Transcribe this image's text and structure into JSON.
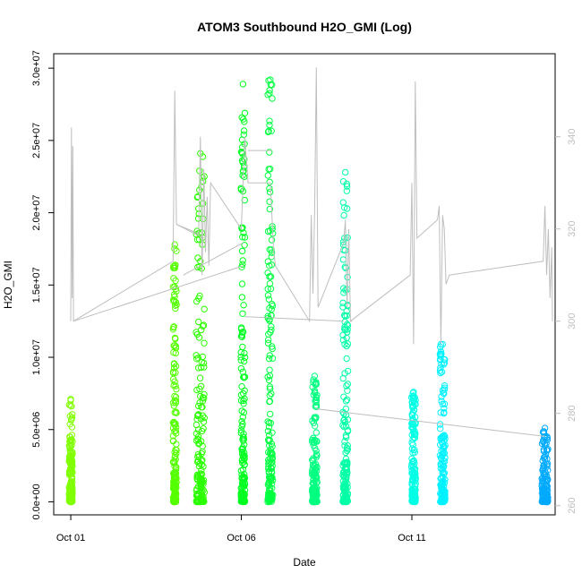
{
  "chart_data": {
    "type": "scatter",
    "title": "ATOM3 Southbound H2O_GMI (Log)",
    "xlabel": "Date",
    "ylabel": "H2O_GMI",
    "x_ticks": [
      {
        "label": "Oct 01",
        "day": 1
      },
      {
        "label": "Oct 06",
        "day": 6
      },
      {
        "label": "Oct 11",
        "day": 11
      }
    ],
    "xlim_days": [
      0.5,
      15.2
    ],
    "ylim": [
      -900000,
      31000000
    ],
    "y_ticks": [
      {
        "label": "0.0e+00",
        "value": 0
      },
      {
        "label": "5.0e+06",
        "value": 5000000
      },
      {
        "label": "1.0e+07",
        "value": 10000000
      },
      {
        "label": "1.5e+07",
        "value": 15000000
      },
      {
        "label": "2.0e+07",
        "value": 20000000
      },
      {
        "label": "2.5e+07",
        "value": 25000000
      },
      {
        "label": "3.0e+07",
        "value": 30000000
      }
    ],
    "secondary_ylim": [
      258,
      358
    ],
    "secondary_y_ticks": [
      {
        "label": "260",
        "value": 260
      },
      {
        "label": "280",
        "value": 280
      },
      {
        "label": "300",
        "value": 300
      },
      {
        "label": "320",
        "value": 320
      },
      {
        "label": "340",
        "value": 340
      }
    ],
    "grid": false,
    "legend": "none",
    "series_color_scale": "rainbow by date",
    "clusters": [
      {
        "day": 1.0,
        "width": 0.1,
        "max": 7100000,
        "color": "#80ff00"
      },
      {
        "day": 4.05,
        "width": 0.1,
        "max": 17800000,
        "color": "#55ff00"
      },
      {
        "day": 4.8,
        "width": 0.25,
        "max": 24100000,
        "color": "#2bff00"
      },
      {
        "day": 6.05,
        "width": 0.12,
        "max": 28900000,
        "color": "#00ff20"
      },
      {
        "day": 6.85,
        "width": 0.15,
        "max": 29200000,
        "color": "#00ff40"
      },
      {
        "day": 8.15,
        "width": 0.15,
        "max": 8700000,
        "color": "#00ff80"
      },
      {
        "day": 9.05,
        "width": 0.15,
        "max": 22800000,
        "color": "#00ffa6"
      },
      {
        "day": 11.05,
        "width": 0.12,
        "max": 7600000,
        "color": "#00ffe5"
      },
      {
        "day": 11.9,
        "width": 0.15,
        "max": 10900000,
        "color": "#00f2ff"
      },
      {
        "day": 14.9,
        "width": 0.18,
        "max": 5100000,
        "color": "#00aaff"
      }
    ],
    "secondary_line": {
      "color": "#bebebe",
      "points": [
        [
          1.0,
          300
        ],
        [
          1.02,
          342
        ],
        [
          1.04,
          305
        ],
        [
          1.06,
          338
        ],
        [
          1.08,
          300
        ],
        [
          4.0,
          313
        ],
        [
          4.05,
          350
        ],
        [
          4.1,
          321
        ],
        [
          4.75,
          319
        ],
        [
          4.8,
          340
        ],
        [
          4.85,
          310
        ],
        [
          4.9,
          333
        ],
        [
          4.95,
          315
        ],
        [
          5.0,
          327
        ],
        [
          5.05,
          312
        ],
        [
          5.1,
          330
        ],
        [
          6.0,
          320
        ],
        [
          6.1,
          340
        ],
        [
          6.2,
          330
        ],
        [
          6.85,
          330
        ],
        [
          6.95,
          315
        ],
        [
          7.0,
          312
        ],
        [
          8.0,
          300
        ],
        [
          8.05,
          323
        ],
        [
          8.1,
          306
        ],
        [
          8.15,
          324
        ],
        [
          8.2,
          355
        ],
        [
          8.25,
          303
        ],
        [
          9.0,
          317
        ],
        [
          9.05,
          322
        ],
        [
          9.1,
          303
        ],
        [
          9.15,
          320
        ],
        [
          9.2,
          300
        ],
        [
          10.95,
          310
        ],
        [
          11.0,
          330
        ],
        [
          11.05,
          295
        ],
        [
          11.1,
          352
        ],
        [
          11.15,
          318
        ],
        [
          11.75,
          322
        ],
        [
          11.8,
          325
        ],
        [
          11.85,
          295
        ],
        [
          11.9,
          323
        ],
        [
          11.95,
          320
        ],
        [
          12.0,
          308
        ],
        [
          12.1,
          310
        ],
        [
          14.85,
          313
        ],
        [
          14.9,
          325
        ],
        [
          14.95,
          310
        ],
        [
          15.0,
          320
        ],
        [
          15.05,
          305
        ],
        [
          15.1,
          316
        ],
        [
          15.12,
          300
        ]
      ],
      "connectors": [
        [
          [
            1.08,
            300
          ],
          [
            6.05,
            312
          ]
        ],
        [
          [
            4.1,
            321
          ],
          [
            4.9,
            318
          ]
        ],
        [
          [
            4.3,
            310
          ],
          [
            6.05,
            317
          ]
        ],
        [
          [
            6.1,
            301
          ],
          [
            9.0,
            300
          ]
        ],
        [
          [
            8.2,
            281
          ],
          [
            14.9,
            275
          ]
        ],
        [
          [
            6.2,
            337
          ],
          [
            6.9,
            337
          ]
        ],
        [
          [
            9.2,
            300
          ],
          [
            9.25,
            300
          ]
        ]
      ]
    }
  }
}
